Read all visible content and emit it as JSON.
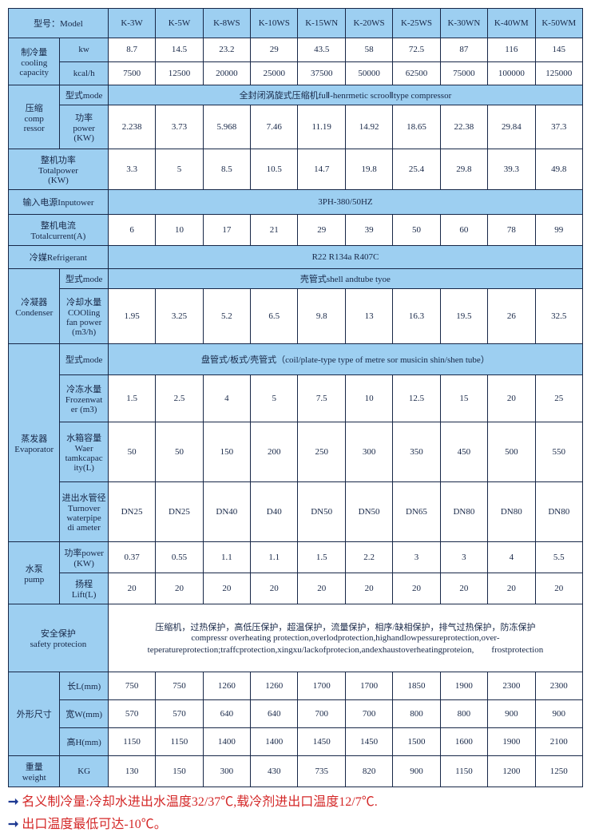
{
  "models": [
    "K-3W",
    "K-5W",
    "K-8WS",
    "K-10WS",
    "K-15WN",
    "K-20WS",
    "K-25WS",
    "K-30WN",
    "K-40WM",
    "K-50WM"
  ],
  "labels": {
    "model": "型号：Model",
    "cooling": "制冷量\ncooling\ncapacity",
    "kw": "kw",
    "kcalh": "kcal/h",
    "compressor": "压缩\ncomp\nressor",
    "typeMode": "型式mode",
    "compressorMode": "全封闭涡旋式压缩机fuⅡ-henrmetic scrooⅡtype compressor",
    "power": "功率\npower\n(KW)",
    "totalPower": "整机功率\nTotalpower\n(KW)",
    "inputPower": "输入电源Inputower",
    "inputPowerVal": "3PH-380/50HZ",
    "totalCurrent": "整机电流\nTotalcurrent(A)",
    "refrigerant": "冷媒Refrigerant",
    "refrigerantVal": "R22 R134a R407C",
    "condenser": "冷凝器\nCondenser",
    "condenserMode": "壳管式shell andtube tyoe",
    "coolingFan": "冷却水量\nCOOling\nfan power\n(m3/h)",
    "evaporator": "蒸发器\nEvaporator",
    "evaporatorMode": "盘管式/板式/壳管式（coil/plate-type type of metre sor musicin shin/shen tube）",
    "frozenWater": "冷冻水量\nFrozenwat\ner (m3)",
    "tankCapacity": "水箱容量\nWaer\ntamkcapac\nity(L)",
    "turnover": "进出水管径\nTurnover\nwaterpipe\ndi ameter",
    "pump": "水泵\npump",
    "pumpPower": "功率power\n(KW)",
    "lift": "扬程\nLift(L)",
    "safety": "安全保护\nsafety protecion",
    "safetyVal": "压缩机，过热保护，高低压保护，超温保护，流量保护，相序/缺相保护，排气过热保护，防冻保护\ncompressr overheating protection,overlodprotection,highandlowpessureprotection,over-teperatureprotection;traffcprotection,xingxu/lackofprotecion,andexhaustoverheatingproteion,　　frostprotection",
    "dimensions": "外形尺寸",
    "length": "长L(mm)",
    "width": "宽W(mm)",
    "height": "高H(mm)",
    "weight": "重量\nweight",
    "kg": "KG"
  },
  "rows": {
    "kw": [
      "8.7",
      "14.5",
      "23.2",
      "29",
      "43.5",
      "58",
      "72.5",
      "87",
      "116",
      "145"
    ],
    "kcalh": [
      "7500",
      "12500",
      "20000",
      "25000",
      "37500",
      "50000",
      "62500",
      "75000",
      "100000",
      "125000"
    ],
    "power": [
      "2.238",
      "3.73",
      "5.968",
      "7.46",
      "11.19",
      "14.92",
      "18.65",
      "22.38",
      "29.84",
      "37.3"
    ],
    "totalPower": [
      "3.3",
      "5",
      "8.5",
      "10.5",
      "14.7",
      "19.8",
      "25.4",
      "29.8",
      "39.3",
      "49.8"
    ],
    "totalCurrent": [
      "6",
      "10",
      "17",
      "21",
      "29",
      "39",
      "50",
      "60",
      "78",
      "99"
    ],
    "coolingFan": [
      "1.95",
      "3.25",
      "5.2",
      "6.5",
      "9.8",
      "13",
      "16.3",
      "19.5",
      "26",
      "32.5"
    ],
    "frozenWater": [
      "1.5",
      "2.5",
      "4",
      "5",
      "7.5",
      "10",
      "12.5",
      "15",
      "20",
      "25"
    ],
    "tankCapacity": [
      "50",
      "50",
      "150",
      "200",
      "250",
      "300",
      "350",
      "450",
      "500",
      "550"
    ],
    "turnover": [
      "DN25",
      "DN25",
      "DN40",
      "D40",
      "DN50",
      "DN50",
      "DN65",
      "DN80",
      "DN80",
      "DN80"
    ],
    "pumpPower": [
      "0.37",
      "0.55",
      "1.1",
      "1.1",
      "1.5",
      "2.2",
      "3",
      "3",
      "4",
      "5.5"
    ],
    "lift": [
      "20",
      "20",
      "20",
      "20",
      "20",
      "20",
      "20",
      "20",
      "20",
      "20"
    ],
    "length": [
      "750",
      "750",
      "1260",
      "1260",
      "1700",
      "1700",
      "1850",
      "1900",
      "2300",
      "2300"
    ],
    "width": [
      "570",
      "570",
      "640",
      "640",
      "700",
      "700",
      "800",
      "800",
      "900",
      "900"
    ],
    "height": [
      "1150",
      "1150",
      "1400",
      "1400",
      "1450",
      "1450",
      "1500",
      "1600",
      "1900",
      "2100"
    ],
    "weight": [
      "130",
      "150",
      "300",
      "430",
      "735",
      "820",
      "900",
      "1150",
      "1200",
      "1250"
    ]
  },
  "footer": {
    "line1": "名义制冷量:冷却水进出水温度32/37℃,载冷剂进出口温度12/7℃.",
    "line2": "出口温度最低可达-10℃。"
  }
}
